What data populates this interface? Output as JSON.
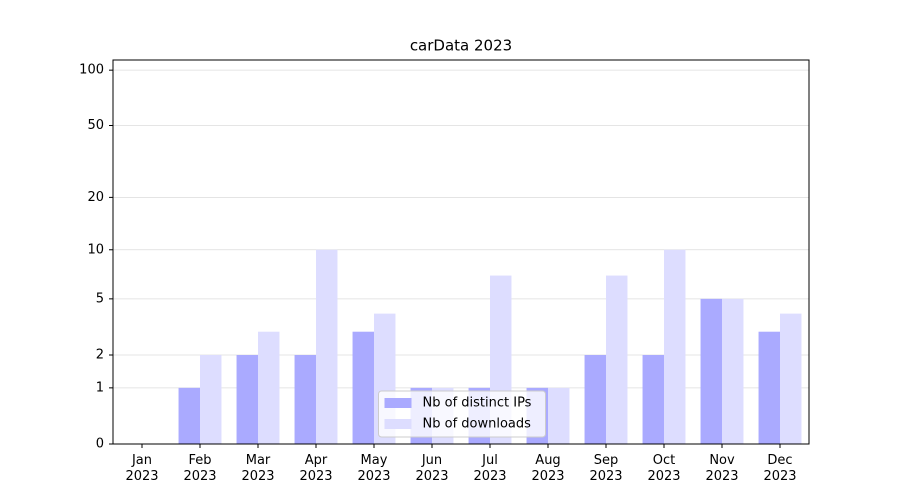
{
  "chart_data": {
    "type": "bar",
    "title": "carData 2023",
    "categories": [
      "Jan\n2023",
      "Feb\n2023",
      "Mar\n2023",
      "Apr\n2023",
      "May\n2023",
      "Jun\n2023",
      "Jul\n2023",
      "Aug\n2023",
      "Sep\n2023",
      "Oct\n2023",
      "Nov\n2023",
      "Dec\n2023"
    ],
    "series": [
      {
        "name": "Nb of distinct IPs",
        "color": "#aaaaff",
        "values": [
          0,
          1,
          2,
          2,
          3,
          1,
          1,
          1,
          2,
          2,
          5,
          3
        ]
      },
      {
        "name": "Nb of downloads",
        "color": "#ddddff",
        "values": [
          0,
          2,
          3,
          10,
          4,
          1,
          7,
          1,
          7,
          10,
          5,
          4
        ]
      }
    ],
    "yscale": "log1p",
    "ylim": [
      0,
      113.5
    ],
    "yticks": [
      0,
      1,
      2,
      5,
      10,
      20,
      50,
      100
    ],
    "grid": true,
    "legend": "lower center"
  }
}
